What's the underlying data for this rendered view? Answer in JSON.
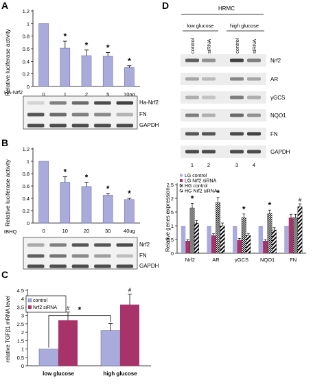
{
  "panels": {
    "A": {
      "letter": "A"
    },
    "B": {
      "letter": "B"
    },
    "C": {
      "letter": "C"
    },
    "D": {
      "letter": "D"
    }
  },
  "colors": {
    "lavender": "#a9acdb",
    "magenta": "#a7336a",
    "bar_edge": "#6b6fa6",
    "black": "#000000"
  },
  "chart_data": [
    {
      "panel": "A",
      "type": "bar",
      "ylabel": "Relative luciferase activity",
      "ylim": [
        0,
        1.2
      ],
      "yticks": [
        "0",
        "0.2",
        "0.4",
        "0.6",
        "0.8",
        "1",
        "1.2"
      ],
      "x_prefix": "HA-Nrf2",
      "categories": [
        "0",
        "1",
        "2",
        "5",
        "10ng"
      ],
      "values": [
        1.0,
        0.61,
        0.49,
        0.48,
        0.3
      ],
      "errors": [
        0,
        0.11,
        0.09,
        0.06,
        0.03
      ],
      "significance": [
        "",
        "*",
        "*",
        "*",
        "*"
      ],
      "blot_labels": [
        "Ha-Nrf2",
        "FN",
        "GAPDH"
      ]
    },
    {
      "panel": "B",
      "type": "bar",
      "ylabel": "Relative luciferase activity",
      "ylim": [
        0,
        1.2
      ],
      "yticks": [
        "0",
        "0.2",
        "0.4",
        "0.6",
        "0.8",
        "1",
        "1.2"
      ],
      "x_prefix": "tBHQ",
      "categories": [
        "0",
        "10",
        "20",
        "30",
        "40ug"
      ],
      "values": [
        1.0,
        0.66,
        0.59,
        0.45,
        0.38
      ],
      "errors": [
        0,
        0.09,
        0.07,
        0.03,
        0.02
      ],
      "significance": [
        "",
        "*",
        "*",
        "*",
        "*"
      ],
      "blot_labels": [
        "Nrf2",
        "FN",
        "GAPDH"
      ]
    },
    {
      "panel": "C",
      "type": "bar",
      "ylabel": "relative TGFβ1 mRNA level",
      "ylim": [
        0,
        4.5
      ],
      "yticks": [
        "0",
        "0.5",
        "1",
        "1.5",
        "2",
        "2.5",
        "3",
        "3.5",
        "4",
        "4.5"
      ],
      "categories": [
        "low glucose",
        "high glucose"
      ],
      "series": [
        {
          "name": "control",
          "values": [
            1.0,
            2.1
          ],
          "errors": [
            0,
            0.42
          ]
        },
        {
          "name": "Nrf2 siRNA",
          "values": [
            2.72,
            3.65
          ],
          "errors": [
            0.48,
            0.62
          ]
        }
      ],
      "marks": {
        "hash": "#",
        "star": "*"
      }
    },
    {
      "panel": "D",
      "type": "bar",
      "header": "HRMC",
      "group_labels": [
        "low glucose",
        "high glucose"
      ],
      "lane_labels": [
        "control",
        "siRNA",
        "control",
        "siRNA"
      ],
      "lane_numbers": [
        "1",
        "2",
        "3",
        "4"
      ],
      "blot_labels": [
        "Nrf2",
        "AR",
        "γGCS",
        "NQO1",
        "FN",
        "GAPDH"
      ],
      "ylabel": "Relative genes expression",
      "ylim": [
        0,
        2.5
      ],
      "yticks": [
        "0",
        "0.5",
        "1",
        "1.5",
        "2",
        "2.5"
      ],
      "categories": [
        "Nrf2",
        "AR",
        "γGCS",
        "NQO1",
        "FN"
      ],
      "series": [
        {
          "name": "LG control",
          "values": [
            1.0,
            1.0,
            1.0,
            1.0,
            1.0
          ],
          "errors": [
            0,
            0,
            0,
            0,
            0
          ]
        },
        {
          "name": "LG Nrf2 siRNA",
          "values": [
            0.45,
            0.65,
            0.48,
            0.45,
            1.3
          ],
          "errors": [
            0.05,
            0.06,
            0.06,
            0.05,
            0.12
          ]
        },
        {
          "name": "HG control",
          "values": [
            1.65,
            1.85,
            1.3,
            1.45,
            1.3
          ],
          "errors": [
            0.16,
            0.18,
            0.13,
            0.12,
            0.12
          ]
        },
        {
          "name": "HG Nrf2 siRNA",
          "values": [
            1.1,
            1.0,
            0.65,
            0.85,
            1.7
          ],
          "errors": [
            0.09,
            0.1,
            0.07,
            0.08,
            0.1
          ]
        }
      ],
      "significance": [
        "*",
        "*",
        "*",
        "*",
        "#"
      ]
    }
  ]
}
